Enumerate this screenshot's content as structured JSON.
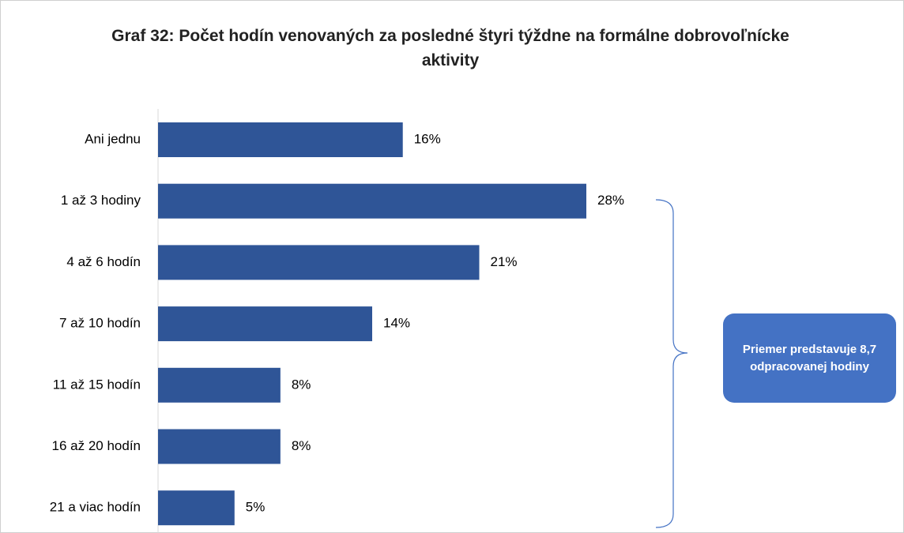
{
  "chart_data": {
    "type": "bar",
    "orientation": "horizontal",
    "title": "Graf 32: Počet hodín venovaných za posledné štyri týždne na formálne dobrovoľnícke aktivity",
    "categories": [
      "Ani jednu",
      "1 až 3 hodiny",
      "4 až 6 hodín",
      "7 až 10 hodín",
      "11 až 15 hodín",
      "16 až 20 hodín",
      "21 a viac hodín"
    ],
    "values": [
      16,
      28,
      21,
      14,
      8,
      8,
      5
    ],
    "value_labels": [
      "16%",
      "28%",
      "21%",
      "14%",
      "8%",
      "8%",
      "5%"
    ],
    "color": "#2f5597",
    "annotation": "Priemer predstavuje 8,7 odpracovanej hodiny"
  }
}
